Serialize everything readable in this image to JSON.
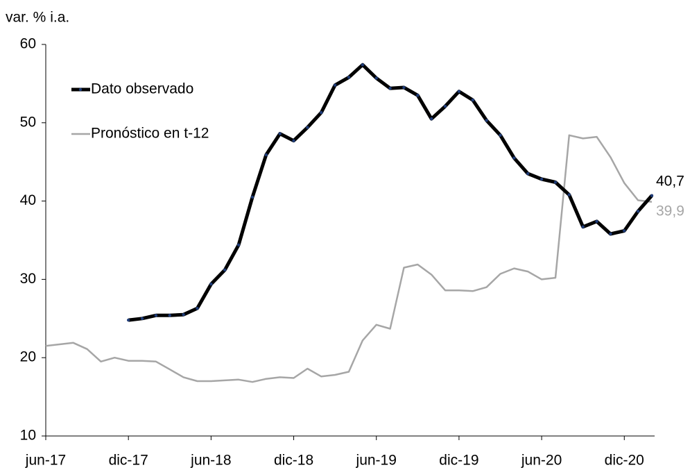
{
  "chart_data": {
    "type": "line",
    "ylabel": "var. % i.a.",
    "categories": [
      "jun-17",
      null,
      null,
      null,
      null,
      null,
      "dic-17",
      null,
      null,
      null,
      null,
      null,
      "jun-18",
      null,
      null,
      null,
      null,
      null,
      "dic-18",
      null,
      null,
      null,
      null,
      null,
      "jun-19",
      null,
      null,
      null,
      null,
      null,
      "dic-19",
      null,
      null,
      null,
      null,
      null,
      "jun-20",
      null,
      null,
      null,
      null,
      null,
      "dic-20",
      null,
      null
    ],
    "series": [
      {
        "name": "Dato observado",
        "color": "#000000",
        "marker_color": "#1f3c78",
        "values": [
          null,
          null,
          null,
          null,
          null,
          null,
          24.8,
          25.0,
          25.4,
          25.4,
          25.5,
          26.3,
          29.4,
          31.2,
          34.4,
          40.5,
          45.9,
          48.6,
          47.7,
          49.4,
          51.3,
          54.8,
          55.8,
          57.4,
          55.7,
          54.4,
          54.5,
          53.5,
          50.5,
          52.1,
          54.0,
          52.9,
          50.3,
          48.4,
          45.5,
          43.5,
          42.8,
          42.4,
          40.8,
          36.7,
          37.4,
          35.8,
          36.2,
          38.7,
          40.7
        ],
        "value_labels": [
          null,
          null,
          null,
          null,
          null,
          null,
          null,
          null,
          null,
          null,
          null,
          null,
          null,
          null,
          null,
          null,
          null,
          null,
          null,
          null,
          null,
          null,
          null,
          null,
          null,
          null,
          null,
          null,
          null,
          null,
          null,
          null,
          null,
          null,
          null,
          null,
          null,
          null,
          null,
          null,
          null,
          null,
          null,
          null,
          "40,7"
        ]
      },
      {
        "name": "Pronóstico en t-12",
        "color": "#a6a6a6",
        "values": [
          21.5,
          21.7,
          21.9,
          21.1,
          19.5,
          20.0,
          19.6,
          19.6,
          19.5,
          18.5,
          17.5,
          17.0,
          17.0,
          17.1,
          17.2,
          16.9,
          17.3,
          17.5,
          17.4,
          18.6,
          17.6,
          17.8,
          18.2,
          22.2,
          24.2,
          23.7,
          31.5,
          31.9,
          30.6,
          28.6,
          28.6,
          28.5,
          29.0,
          30.7,
          31.4,
          31.0,
          30.0,
          30.2,
          48.4,
          48.0,
          48.2,
          45.6,
          42.3,
          40.1,
          39.9
        ],
        "value_labels": [
          null,
          null,
          null,
          null,
          null,
          null,
          null,
          null,
          null,
          null,
          null,
          null,
          null,
          null,
          null,
          null,
          null,
          null,
          null,
          null,
          null,
          null,
          null,
          null,
          null,
          null,
          null,
          null,
          null,
          null,
          null,
          null,
          null,
          null,
          null,
          null,
          null,
          null,
          null,
          null,
          null,
          null,
          null,
          null,
          "39,9"
        ]
      }
    ],
    "ylim": [
      10,
      60
    ],
    "yticks": [
      10,
      20,
      30,
      40,
      50,
      60
    ],
    "grid": false,
    "legend": "upper left"
  }
}
